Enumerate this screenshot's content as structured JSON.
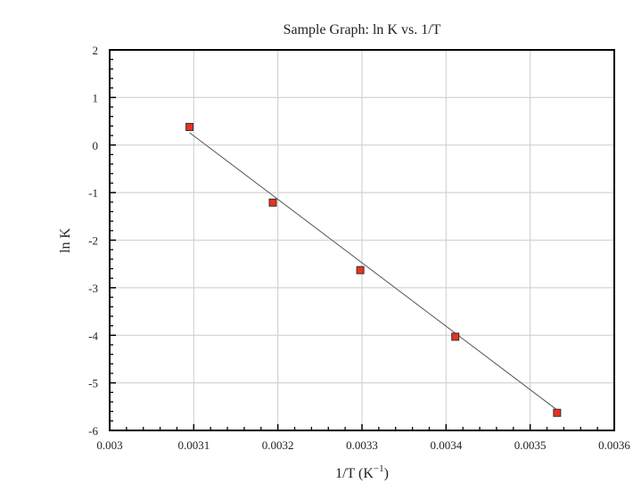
{
  "chart_data": {
    "type": "scatter",
    "title": "Sample Graph:  ln K vs. 1/T",
    "xlabel": "1/T (K",
    "xlabel_superscript": "−1",
    "xlabel_suffix": ")",
    "ylabel": "ln K",
    "xlim": [
      0.003,
      0.0036
    ],
    "ylim": [
      -6,
      2
    ],
    "x_ticks": [
      0.003,
      0.0031,
      0.0032,
      0.0033,
      0.0034,
      0.0035,
      0.0036
    ],
    "x_tick_labels": [
      "0.003",
      "0.0031",
      "0.0032",
      "0.0033",
      "0.0034",
      "0.0035",
      "0.0036"
    ],
    "y_ticks": [
      2,
      1,
      0,
      -1,
      -2,
      -3,
      -4,
      -5,
      -6
    ],
    "y_tick_labels": [
      "2",
      "1",
      "0",
      "-1",
      "-2",
      "-3",
      "-4",
      "-5",
      "-6"
    ],
    "x_minor_step": 2e-05,
    "y_minor_step": 0.2,
    "grid": true,
    "legend": "none",
    "series": [
      {
        "x": [
          0.003095,
          0.003194,
          0.003298,
          0.003411,
          0.003532
        ],
        "y": [
          0.38,
          -1.21,
          -2.63,
          -4.03,
          -5.63
        ],
        "marker": "square",
        "color": "#e8321e"
      }
    ],
    "fit_line": {
      "x": [
        0.003095,
        0.003532
      ],
      "y": [
        0.26,
        -5.57
      ],
      "color": "#555555"
    }
  }
}
